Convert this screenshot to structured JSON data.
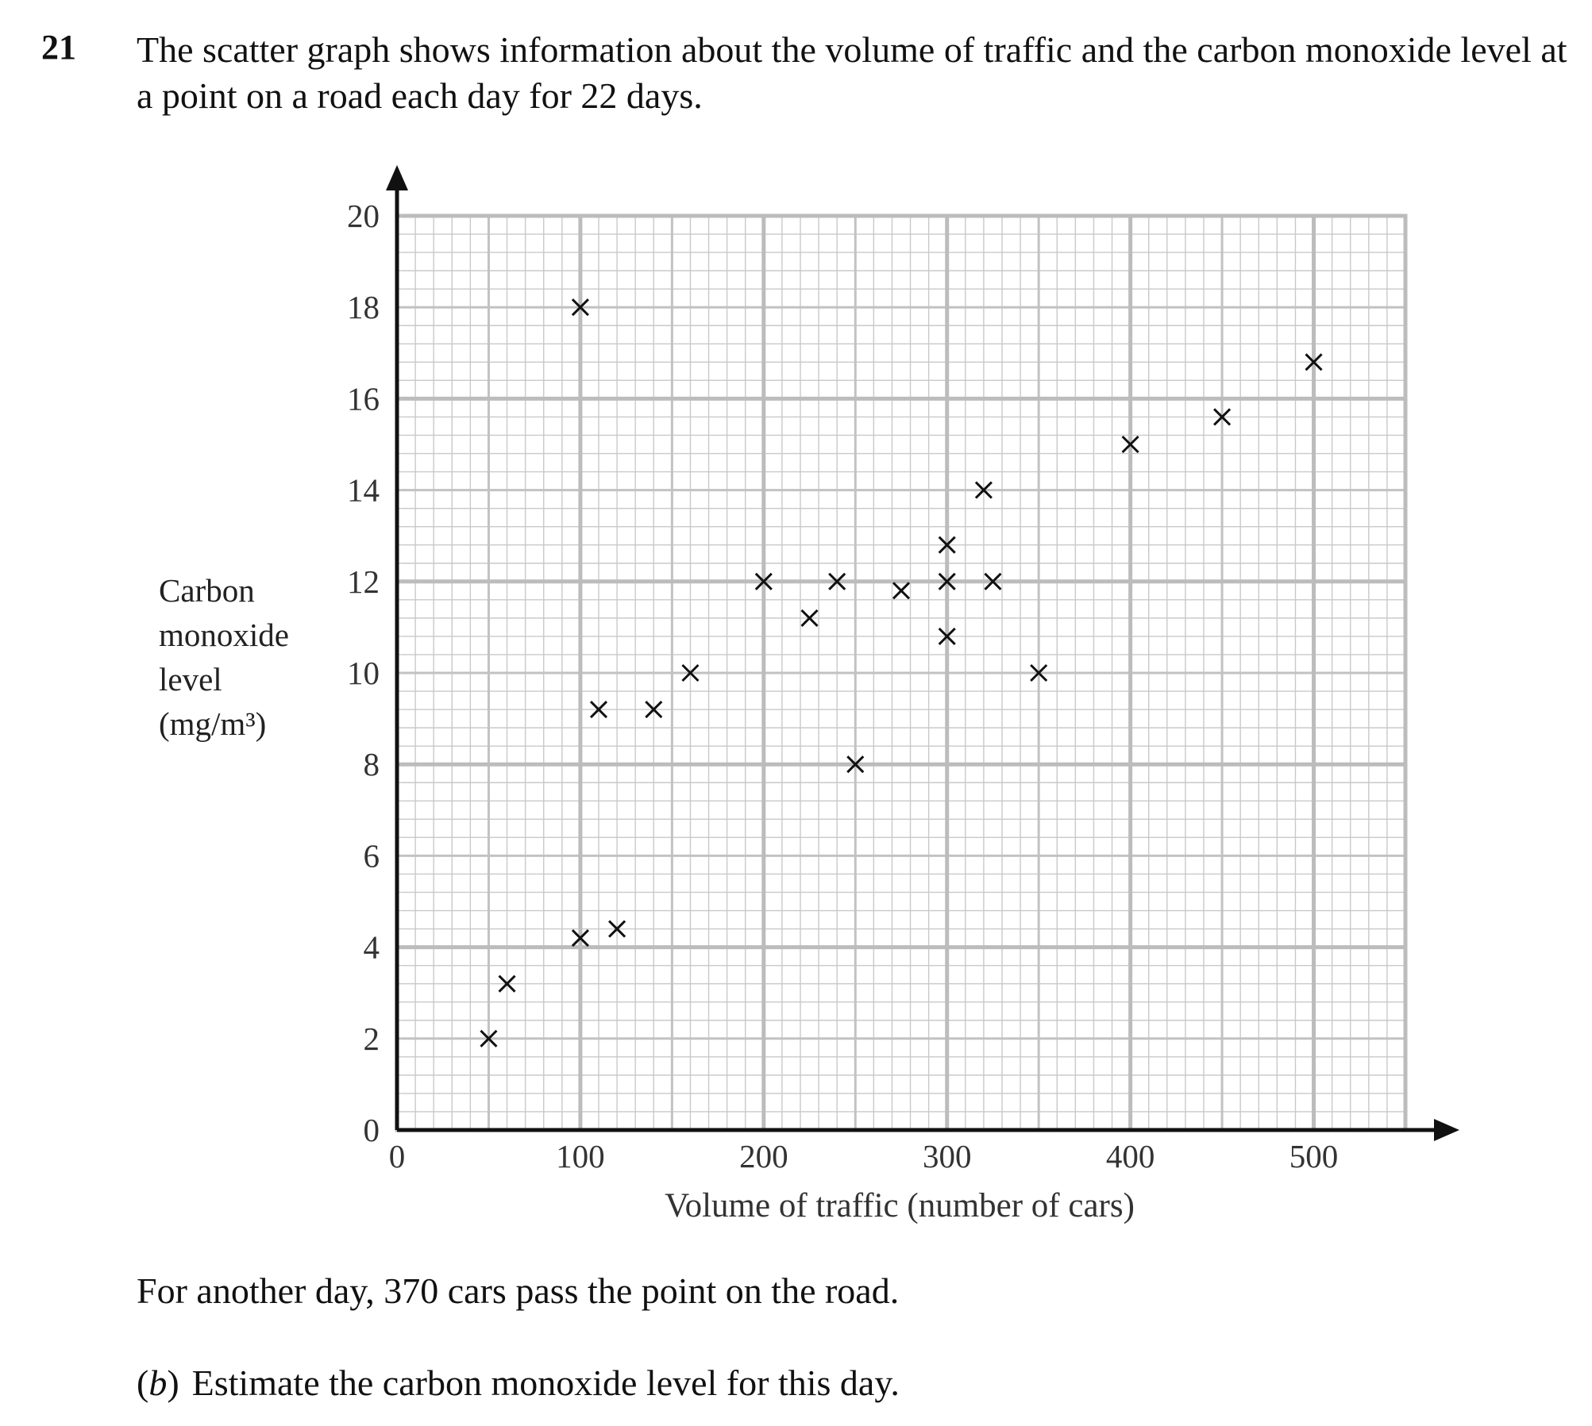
{
  "question": {
    "number": "21",
    "intro": "The scatter graph shows information about the volume of traffic and the carbon monoxide level at a point on a road each day for 22 days.",
    "extra": "For another day, 370 cars pass the point on the road.",
    "part_b": {
      "open": "(",
      "letter": "b",
      "close": ")",
      "text": "Estimate the carbon monoxide level for this day."
    }
  },
  "chart_data": {
    "type": "scatter",
    "marker": "cross",
    "xlabel": "Volume of traffic (number of cars)",
    "ylabel_lines": [
      "Carbon",
      "monoxide",
      "level",
      "(mg/m³)"
    ],
    "xlim": [
      0,
      550
    ],
    "ylim": [
      0,
      20
    ],
    "x_ticks": [
      0,
      100,
      200,
      300,
      400,
      500
    ],
    "y_ticks": [
      0,
      2,
      4,
      6,
      8,
      10,
      12,
      14,
      16,
      18,
      20
    ],
    "x_minor_step": 10,
    "y_minor_step": 0.4,
    "grid": true,
    "points": [
      [
        50,
        2
      ],
      [
        60,
        3.2
      ],
      [
        100,
        4.2
      ],
      [
        120,
        4.4
      ],
      [
        100,
        18
      ],
      [
        110,
        9.2
      ],
      [
        140,
        9.2
      ],
      [
        160,
        10
      ],
      [
        200,
        12
      ],
      [
        225,
        11.2
      ],
      [
        240,
        12
      ],
      [
        250,
        8
      ],
      [
        275,
        11.8
      ],
      [
        300,
        12.8
      ],
      [
        300,
        12
      ],
      [
        300,
        10.8
      ],
      [
        320,
        14
      ],
      [
        325,
        12
      ],
      [
        350,
        10
      ],
      [
        400,
        15
      ],
      [
        450,
        15.6
      ],
      [
        500,
        16.8
      ]
    ]
  }
}
